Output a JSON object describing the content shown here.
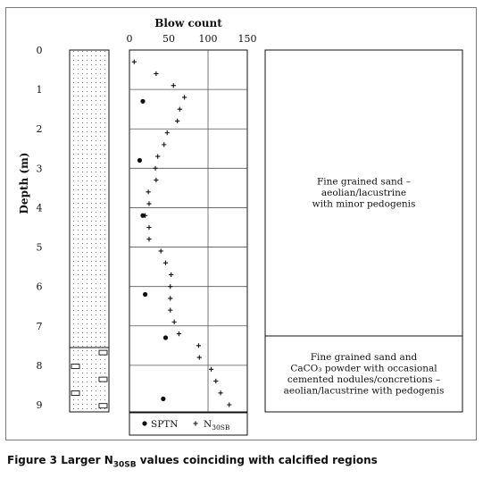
{
  "chart_data": {
    "type": "scatter",
    "xlabel": "Blow count",
    "ylabel": "Depth (m)",
    "xlim": [
      0,
      150
    ],
    "ylim": [
      0,
      9
    ],
    "x_ticks": [
      "0",
      "50",
      "100",
      "150"
    ],
    "y_ticks": [
      "0",
      "1",
      "2",
      "3",
      "4",
      "5",
      "6",
      "7",
      "8",
      "9"
    ],
    "series": [
      {
        "name": "SPTN",
        "marker": "dot",
        "points": [
          [
            17,
            1.3
          ],
          [
            13,
            2.8
          ],
          [
            17,
            4.2
          ],
          [
            20,
            6.2
          ],
          [
            46,
            7.3
          ],
          [
            43,
            8.85
          ]
        ]
      },
      {
        "name": "N30SB",
        "marker": "plus",
        "points": [
          [
            6,
            0.3
          ],
          [
            34,
            0.6
          ],
          [
            56,
            0.9
          ],
          [
            70,
            1.2
          ],
          [
            64,
            1.5
          ],
          [
            61,
            1.8
          ],
          [
            48,
            2.1
          ],
          [
            44,
            2.4
          ],
          [
            36,
            2.7
          ],
          [
            33,
            3.0
          ],
          [
            34,
            3.3
          ],
          [
            24,
            3.6
          ],
          [
            25,
            3.9
          ],
          [
            20,
            4.2
          ],
          [
            25,
            4.5
          ],
          [
            25,
            4.8
          ],
          [
            40,
            5.1
          ],
          [
            46,
            5.4
          ],
          [
            53,
            5.7
          ],
          [
            52,
            6.0
          ],
          [
            52,
            6.3
          ],
          [
            52,
            6.6
          ],
          [
            57,
            6.9
          ],
          [
            63,
            7.2
          ],
          [
            88,
            7.5
          ],
          [
            89,
            7.8
          ],
          [
            104,
            8.1
          ],
          [
            110,
            8.4
          ],
          [
            116,
            8.7
          ],
          [
            127,
            9.0
          ]
        ]
      }
    ],
    "legend": [
      {
        "label": "SPTN",
        "sub": ""
      },
      {
        "label": "N",
        "sub": "30SB"
      }
    ],
    "layers": [
      {
        "from": 0,
        "to": 7.3,
        "text": [
          "Fine grained sand –",
          "aeolian/lacustrine",
          "with minor pedogenis"
        ]
      },
      {
        "from": 7.3,
        "to": 9.25,
        "text": [
          "Fine grained sand and",
          "CaCO₃ powder with occasional",
          "cemented nodules/concretions –",
          "aeolian/lacustrine with pedogenis"
        ]
      }
    ],
    "grid": "horizontal, every 1 m",
    "legend_position": "bottom"
  },
  "caption": {
    "bold_part": "Figure 3",
    "text_before_sub": " Larger N",
    "sub": "30SB",
    "text_after_sub": " values coinciding with calcified regions"
  },
  "colors": {
    "ink": "#111111",
    "frame": "#7a7a7a",
    "grid": "#555555"
  }
}
